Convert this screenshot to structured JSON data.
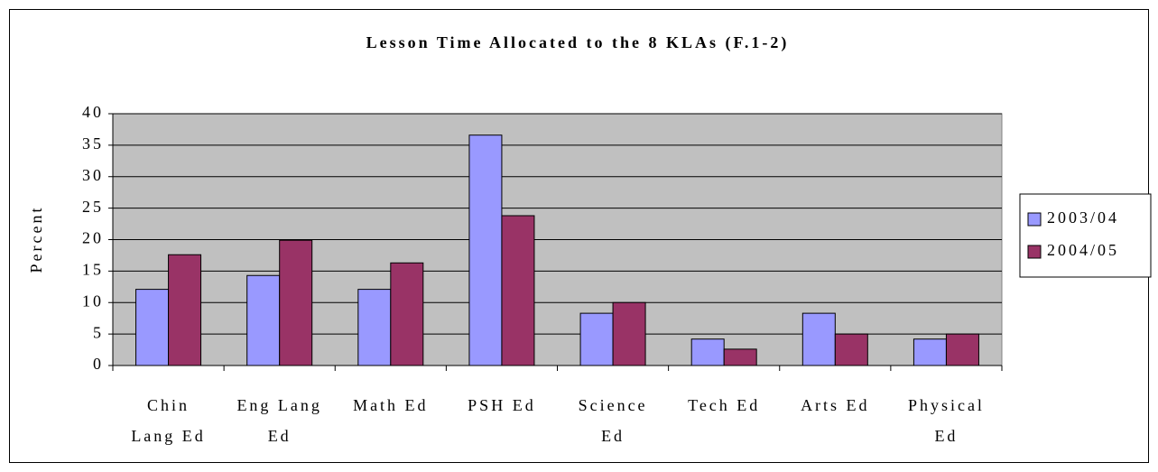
{
  "chart_data": {
    "type": "bar",
    "title": "Lesson Time Allocated to the 8 KLAs (F.1-2)",
    "ylabel": "Percent",
    "categories": [
      "Chin Lang Ed",
      "Eng Lang Ed",
      "Math Ed",
      "PSH Ed",
      "Science Ed",
      "Tech Ed",
      "Arts Ed",
      "Physical Ed"
    ],
    "series": [
      {
        "name": "2003/04",
        "color": "#9999ff",
        "values": [
          12.1,
          14.3,
          12.1,
          36.6,
          8.3,
          4.2,
          8.3,
          4.2
        ]
      },
      {
        "name": "2004/05",
        "color": "#993366",
        "values": [
          17.6,
          19.9,
          16.3,
          23.8,
          10.0,
          2.6,
          5.0,
          5.0
        ]
      }
    ],
    "ylim": [
      0,
      40
    ],
    "yticks": [
      0,
      5,
      10,
      15,
      20,
      25,
      30,
      35,
      40
    ],
    "grid": true,
    "legend": "right",
    "plot_background": "#c0c0c0"
  }
}
